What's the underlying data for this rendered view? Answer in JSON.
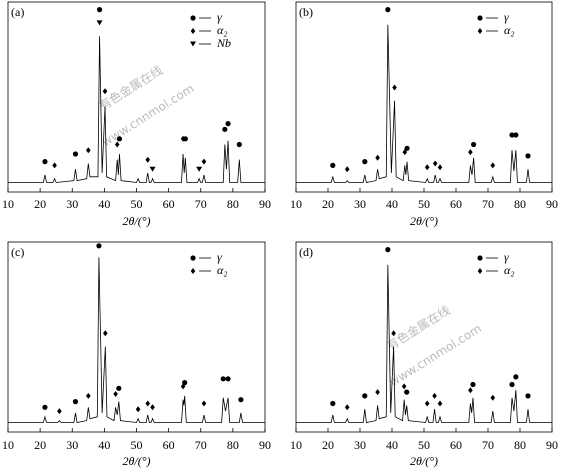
{
  "chart_data": [
    {
      "type": "line",
      "label": "(a)",
      "xlabel": "2θ/(°)",
      "xlim": [
        10,
        90
      ],
      "xticks": [
        10,
        20,
        30,
        40,
        50,
        60,
        70,
        80,
        90
      ],
      "ylim": [
        0,
        100
      ],
      "legend": "upper right",
      "watermark": [
        "有色金属在线",
        "www.cnnmol.com"
      ],
      "series": [
        {
          "color": "#000000",
          "x": [
            10,
            21,
            21.5,
            22,
            24,
            24.5,
            25,
            30.5,
            31,
            31.5,
            34.5,
            35,
            35.5,
            38,
            38.5,
            39.3,
            40.2,
            40.7,
            43.5,
            44,
            44.35,
            44.7,
            45.2,
            50,
            50.5,
            51,
            53,
            53.5,
            54,
            54.5,
            55,
            55.5,
            64,
            64.5,
            64.85,
            65.2,
            65.7,
            69,
            69.5,
            70,
            70.5,
            71,
            71.5,
            77,
            77.5,
            78,
            78.5,
            79,
            81.5,
            82,
            82.5,
            90
          ],
          "values": [
            5,
            5,
            9,
            5,
            5,
            7,
            5,
            6,
            12,
            6,
            7,
            15,
            8,
            8,
            82,
            10,
            45,
            8,
            6,
            17,
            9,
            20,
            6,
            5,
            7,
            5,
            5,
            10,
            5,
            5,
            7,
            5,
            5,
            20,
            10,
            18,
            5,
            5,
            7,
            5,
            5,
            9,
            5,
            5,
            25,
            12,
            27,
            5,
            5,
            17,
            5,
            5
          ]
        },
        {
          "name": "γ",
          "marker": "circle",
          "color": "#000000",
          "x": [
            21.5,
            31,
            38.5,
            44.7,
            65.2,
            77.5,
            78.5,
            82
          ],
          "values": [
            16,
            20,
            96,
            28,
            28,
            33,
            36,
            25
          ]
        },
        {
          "name": "α₂",
          "marker": "diamond",
          "color": "#000000",
          "x": [
            24.5,
            35,
            40.2,
            44,
            53.5,
            64.5,
            71
          ],
          "values": [
            14,
            22,
            53,
            25,
            17,
            28,
            16
          ]
        },
        {
          "name": "Nb",
          "marker": "triangle",
          "color": "#000000",
          "x": [
            38.5,
            55,
            69.5
          ],
          "values": [
            89,
            12,
            12
          ]
        }
      ]
    },
    {
      "type": "line",
      "label": "(b)",
      "xlabel": "2θ/(°)",
      "xlim": [
        10,
        90
      ],
      "xticks": [
        10,
        20,
        30,
        40,
        50,
        60,
        70,
        80,
        90
      ],
      "ylim": [
        0,
        100
      ],
      "legend": "upper right",
      "series": [
        {
          "color": "#000000",
          "x": [
            10,
            21,
            21.5,
            22,
            25.5,
            26,
            26.5,
            31,
            31.5,
            32,
            35,
            35.5,
            36,
            38.2,
            38.7,
            39.8,
            40.8,
            41.3,
            43.5,
            44,
            44.35,
            44.7,
            45.2,
            50.5,
            51,
            51.5,
            53,
            53.5,
            54,
            54.5,
            55,
            55.5,
            64,
            64.5,
            65,
            65.5,
            66,
            71,
            71.5,
            72,
            77,
            77.5,
            78.1,
            78.7,
            79.2,
            82,
            82.5,
            83,
            90
          ],
          "values": [
            5,
            5,
            8,
            5,
            5,
            6,
            5,
            5,
            9,
            5,
            6,
            12,
            7,
            8,
            88,
            10,
            48,
            8,
            6,
            14,
            9,
            16,
            6,
            5,
            7,
            5,
            5,
            9,
            5,
            5,
            7,
            5,
            5,
            14,
            9,
            18,
            5,
            5,
            8,
            5,
            5,
            22,
            11,
            22,
            5,
            5,
            12,
            5,
            5
          ]
        },
        {
          "name": "γ",
          "marker": "circle",
          "color": "#000000",
          "x": [
            21.5,
            31.5,
            38.7,
            44.7,
            65.5,
            77.5,
            78.7,
            82.5
          ],
          "values": [
            14,
            16,
            96,
            23,
            25,
            30,
            30,
            19
          ]
        },
        {
          "name": "α₂",
          "marker": "diamond",
          "color": "#000000",
          "x": [
            26,
            35.5,
            40.8,
            44,
            51,
            53.5,
            55,
            64.5,
            71.5
          ],
          "values": [
            12,
            18,
            55,
            21,
            13,
            15,
            13,
            21,
            14
          ]
        }
      ]
    },
    {
      "type": "line",
      "label": "(c)",
      "xlabel": "2θ/(°)",
      "xlim": [
        10,
        90
      ],
      "xticks": [
        10,
        20,
        30,
        40,
        50,
        60,
        70,
        80,
        90
      ],
      "ylim": [
        0,
        100
      ],
      "legend": "upper right",
      "series": [
        {
          "color": "#000000",
          "x": [
            10,
            21,
            21.5,
            22,
            25.5,
            26,
            26.5,
            30.5,
            31,
            31.5,
            34.5,
            35,
            35.5,
            37.8,
            38.3,
            39.3,
            40.3,
            40.8,
            43,
            43.5,
            44,
            44.5,
            45,
            50,
            50.5,
            51,
            53,
            53.5,
            54,
            54.5,
            55,
            55.5,
            64,
            64.5,
            64.75,
            65,
            65.5,
            70.5,
            71,
            71.5,
            76.5,
            77,
            77.7,
            78.5,
            79,
            82,
            82.5,
            83,
            90
          ],
          "values": [
            5,
            5,
            8,
            5,
            5,
            6,
            5,
            5,
            10,
            5,
            6,
            13,
            7,
            8,
            92,
            10,
            45,
            8,
            6,
            13,
            9,
            16,
            6,
            5,
            7,
            5,
            5,
            9,
            5,
            5,
            7,
            5,
            5,
            17,
            14,
            19,
            5,
            5,
            9,
            5,
            5,
            18,
            11,
            18,
            5,
            5,
            10,
            5,
            5
          ]
        },
        {
          "name": "γ",
          "marker": "circle",
          "color": "#000000",
          "x": [
            21.5,
            31,
            38.3,
            44.5,
            65,
            77,
            78.5,
            82.5
          ],
          "values": [
            13,
            16,
            98,
            23,
            26,
            28,
            28,
            17
          ]
        },
        {
          "name": "α₂",
          "marker": "diamond",
          "color": "#000000",
          "x": [
            26,
            35,
            40.3,
            43.5,
            50.5,
            53.5,
            55,
            64.5,
            71
          ],
          "values": [
            11,
            19,
            52,
            20,
            12,
            15,
            13,
            24,
            15
          ]
        }
      ]
    },
    {
      "type": "line",
      "label": "(d)",
      "xlabel": "2θ/(°)",
      "xlim": [
        10,
        90
      ],
      "xticks": [
        10,
        20,
        30,
        40,
        50,
        60,
        70,
        80,
        90
      ],
      "ylim": [
        0,
        100
      ],
      "legend": "upper right",
      "watermark": [
        "有色金属在线",
        "www.cnnmol.com"
      ],
      "series": [
        {
          "color": "#000000",
          "x": [
            10,
            21,
            21.5,
            22,
            25.5,
            26,
            26.5,
            31,
            31.5,
            32,
            35,
            35.5,
            36,
            38.2,
            38.7,
            39.6,
            40.5,
            41,
            43.3,
            43.8,
            44.2,
            44.6,
            45.1,
            50.5,
            51,
            51.5,
            52.8,
            53.3,
            53.8,
            54.5,
            55,
            55.5,
            64,
            64.5,
            64.9,
            65.3,
            65.8,
            71,
            71.5,
            72,
            77,
            77.5,
            78.1,
            78.7,
            79.2,
            82,
            82.5,
            83,
            90
          ],
          "values": [
            5,
            5,
            9,
            5,
            5,
            7,
            5,
            5,
            12,
            5,
            6,
            14,
            7,
            8,
            88,
            10,
            45,
            8,
            6,
            17,
            9,
            14,
            6,
            5,
            8,
            5,
            5,
            12,
            5,
            5,
            8,
            5,
            5,
            15,
            10,
            18,
            5,
            5,
            11,
            5,
            5,
            18,
            11,
            22,
            5,
            5,
            12,
            5,
            5
          ]
        },
        {
          "name": "γ",
          "marker": "circle",
          "color": "#000000",
          "x": [
            21.5,
            31.5,
            38.7,
            44.6,
            65.3,
            77.5,
            78.7,
            82.5
          ],
          "values": [
            15,
            19,
            96,
            21,
            25,
            25,
            29,
            19
          ]
        },
        {
          "name": "α₂",
          "marker": "diamond",
          "color": "#000000",
          "x": [
            26,
            35.5,
            40.5,
            43.8,
            51,
            53.3,
            55,
            64.5,
            71.5
          ],
          "values": [
            13,
            21,
            52,
            24,
            15,
            19,
            15,
            22,
            18
          ]
        }
      ]
    }
  ]
}
